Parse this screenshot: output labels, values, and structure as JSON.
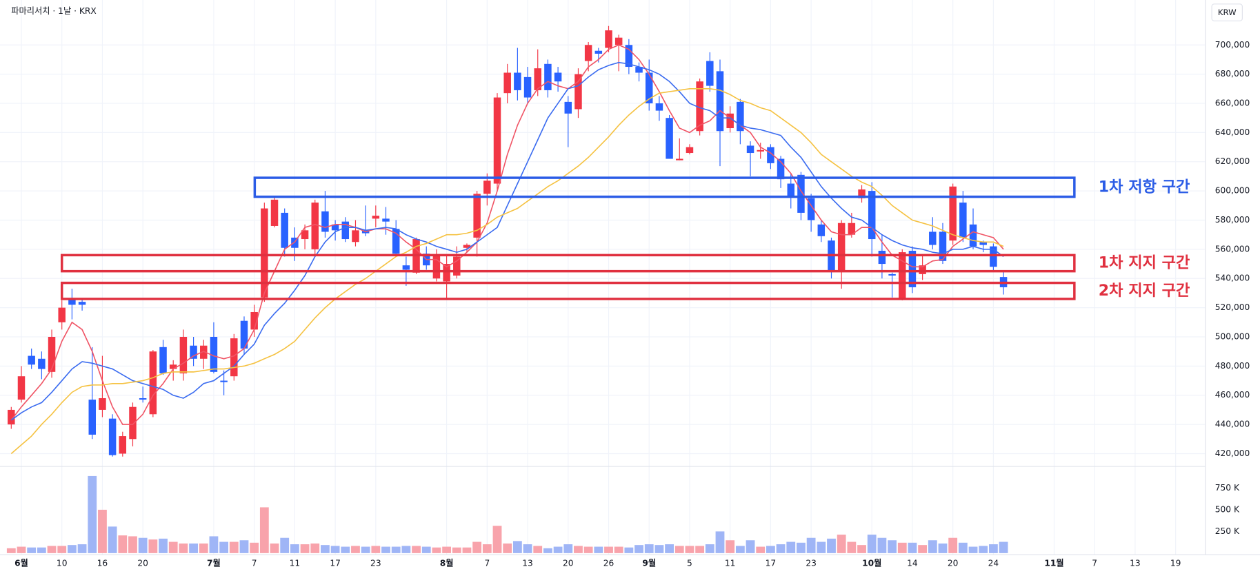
{
  "chart_data": {
    "type": "candlestick",
    "title": "파마리서치 · 1날 · KRX",
    "currency_button": "KRW",
    "grid": true,
    "up_color": "#f23645",
    "down_color": "#2962ff",
    "categories": [
      null,
      "6월",
      null,
      null,
      null,
      "10",
      null,
      null,
      null,
      "16",
      null,
      null,
      null,
      "20",
      null,
      null,
      null,
      null,
      null,
      null,
      "7월",
      null,
      null,
      null,
      "7",
      null,
      null,
      null,
      "11",
      null,
      null,
      null,
      "17",
      null,
      null,
      null,
      "23",
      null,
      null,
      null,
      null,
      null,
      null,
      "8월",
      null,
      null,
      null,
      "7",
      null,
      null,
      null,
      "13",
      null,
      null,
      null,
      "20",
      null,
      null,
      null,
      "26",
      null,
      null,
      null,
      "9월",
      null,
      null,
      null,
      "5",
      null,
      null,
      null,
      "11",
      null,
      null,
      null,
      "17",
      null,
      null,
      null,
      "23",
      null,
      null,
      null,
      null,
      null,
      "10월",
      null,
      null,
      null,
      "14",
      null,
      null,
      null,
      "20",
      null,
      null,
      null,
      "24",
      null,
      null,
      null,
      null,
      null,
      "11월",
      null,
      null,
      null,
      "7",
      null,
      null,
      null,
      "13",
      null,
      null,
      null,
      "19"
    ],
    "open": [
      440000,
      457000,
      487000,
      485000,
      476000,
      510000,
      526000,
      524000,
      457000,
      450000,
      444000,
      420000,
      430000,
      458000,
      447000,
      493000,
      478000,
      475000,
      494000,
      485000,
      500000,
      470000,
      473000,
      511000,
      505000,
      527000,
      576000,
      585000,
      568000,
      567000,
      560000,
      586000,
      577000,
      579000,
      565000,
      573000,
      581000,
      581000,
      574000,
      549000,
      544000,
      557000,
      540000,
      538000,
      542000,
      561000,
      568000,
      598000,
      605000,
      667000,
      681000,
      678000,
      669000,
      687000,
      681000,
      661000,
      656000,
      689000,
      696000,
      698000,
      700000,
      700000,
      685000,
      681000,
      660000,
      650000,
      621000,
      626000,
      641000,
      689000,
      682000,
      643000,
      661000,
      631000,
      627000,
      630000,
      622000,
      605000,
      611000,
      595000,
      577000,
      566000,
      545000,
      570000,
      595000,
      600000,
      559000,
      543000,
      526000,
      559000,
      543000,
      572000,
      572000,
      566000,
      592000,
      577000,
      565000,
      562000,
      541000,
      null,
      null,
      null,
      null,
      null,
      null,
      null,
      null,
      null,
      null,
      null,
      null,
      null,
      null,
      null,
      null,
      null
    ],
    "high": [
      452000,
      480000,
      492000,
      490000,
      505000,
      525000,
      533000,
      526000,
      493000,
      487000,
      447000,
      435000,
      455000,
      466000,
      491000,
      498000,
      484000,
      505000,
      500000,
      498000,
      510000,
      477000,
      502000,
      514000,
      522000,
      592000,
      596000,
      588000,
      575000,
      577000,
      594000,
      600000,
      580000,
      582000,
      580000,
      590000,
      590000,
      589000,
      580000,
      555000,
      568000,
      562000,
      560000,
      556000,
      562000,
      564000,
      600000,
      612000,
      667000,
      687000,
      698000,
      685000,
      697000,
      690000,
      685000,
      665000,
      684000,
      702000,
      698000,
      713000,
      707000,
      704000,
      688000,
      690000,
      665000,
      652000,
      636000,
      632000,
      677000,
      695000,
      690000,
      658000,
      663000,
      634000,
      633000,
      632000,
      624000,
      612000,
      613000,
      598000,
      580000,
      568000,
      580000,
      585000,
      604000,
      606000,
      570000,
      544000,
      560000,
      562000,
      556000,
      582000,
      578000,
      605000,
      600000,
      588000,
      566000,
      564000,
      545000,
      null,
      null,
      null,
      null,
      null,
      null,
      null,
      null,
      null,
      null,
      null,
      null,
      null,
      null,
      null,
      null,
      null
    ],
    "low": [
      437000,
      455000,
      478000,
      471000,
      472000,
      505000,
      512000,
      518000,
      430000,
      445000,
      418000,
      418000,
      425000,
      455000,
      445000,
      474000,
      470000,
      470000,
      480000,
      478000,
      475000,
      460000,
      470000,
      488000,
      500000,
      524000,
      575000,
      555000,
      552000,
      560000,
      556000,
      568000,
      566000,
      565000,
      562000,
      569000,
      575000,
      570000,
      555000,
      535000,
      543000,
      546000,
      538000,
      526000,
      540000,
      558000,
      555000,
      590000,
      600000,
      660000,
      662000,
      660000,
      665000,
      664000,
      668000,
      630000,
      650000,
      682000,
      688000,
      695000,
      682000,
      680000,
      675000,
      655000,
      648000,
      622000,
      621000,
      625000,
      638000,
      668000,
      617000,
      640000,
      632000,
      610000,
      622000,
      615000,
      602000,
      588000,
      580000,
      572000,
      565000,
      540000,
      533000,
      568000,
      592000,
      555000,
      540000,
      527000,
      525000,
      530000,
      539000,
      560000,
      550000,
      563000,
      565000,
      560000,
      558000,
      545000,
      529000,
      null,
      null,
      null,
      null,
      null,
      null,
      null,
      null,
      null,
      null,
      null,
      null,
      null,
      null,
      null,
      null,
      null
    ],
    "close": [
      450000,
      473000,
      481000,
      478000,
      500000,
      520000,
      522000,
      522000,
      433000,
      458000,
      419000,
      432000,
      452000,
      457000,
      490000,
      475000,
      481000,
      500000,
      485000,
      494000,
      476000,
      469000,
      499000,
      492000,
      517000,
      588000,
      594000,
      561000,
      561000,
      573000,
      592000,
      572000,
      573000,
      567000,
      573000,
      571000,
      583000,
      579000,
      557000,
      546000,
      567000,
      549000,
      556000,
      550000,
      555000,
      563000,
      598000,
      607000,
      664000,
      681000,
      669000,
      664000,
      684000,
      669000,
      675000,
      653000,
      680000,
      700000,
      694000,
      710000,
      705000,
      685000,
      681000,
      660000,
      655000,
      622000,
      622000,
      630000,
      675000,
      672000,
      641000,
      653000,
      641000,
      626000,
      628000,
      619000,
      608000,
      596000,
      585000,
      580000,
      569000,
      545000,
      578000,
      578000,
      601000,
      567000,
      550000,
      542000,
      558000,
      534000,
      549000,
      563000,
      552000,
      603000,
      568000,
      562000,
      563000,
      548000,
      534000,
      null,
      null,
      null,
      null,
      null,
      null,
      null,
      null,
      null,
      null,
      null,
      null,
      null,
      null,
      null,
      null,
      null
    ],
    "moving_averages": [
      {
        "color": "#f05566",
        "values": [
          443000,
          452000,
          460000,
          468000,
          478000,
          497000,
          510000,
          505000,
          490000,
          470000,
          452000,
          440000,
          440000,
          447000,
          460000,
          468000,
          478000,
          482000,
          487000,
          490000,
          487000,
          485000,
          487000,
          492000,
          505000,
          530000,
          545000,
          560000,
          565000,
          575000,
          577000,
          575000,
          577000,
          577000,
          575000,
          572000,
          574000,
          574000,
          571000,
          565000,
          560000,
          553000,
          553000,
          548000,
          552000,
          558000,
          565000,
          578000,
          600000,
          625000,
          645000,
          660000,
          670000,
          675000,
          672000,
          670000,
          675000,
          685000,
          690000,
          697000,
          700000,
          697000,
          690000,
          680000,
          668000,
          655000,
          643000,
          640000,
          645000,
          648000,
          655000,
          650000,
          645000,
          640000,
          630000,
          626000,
          620000,
          612000,
          600000,
          590000,
          580000,
          572000,
          570000,
          570000,
          575000,
          575000,
          565000,
          556000,
          552000,
          548000,
          548000,
          552000,
          553000,
          562000,
          567000,
          572000,
          570000,
          568000,
          560000,
          null,
          null,
          null,
          null,
          null,
          null,
          null,
          null,
          null,
          null,
          null,
          null,
          null,
          null,
          null,
          null,
          null
        ]
      },
      {
        "color": "#3b6cf0",
        "values": [
          443000,
          448000,
          452000,
          455000,
          462000,
          470000,
          478000,
          483000,
          482000,
          480000,
          478000,
          474000,
          470000,
          468000,
          466000,
          464000,
          460000,
          458000,
          462000,
          468000,
          470000,
          475000,
          480000,
          488000,
          495000,
          508000,
          516000,
          523000,
          532000,
          542000,
          555000,
          565000,
          572000,
          575000,
          575000,
          573000,
          574000,
          575000,
          574000,
          570000,
          567000,
          565000,
          562000,
          560000,
          558000,
          560000,
          565000,
          570000,
          575000,
          590000,
          605000,
          620000,
          635000,
          650000,
          660000,
          670000,
          672000,
          678000,
          683000,
          686000,
          688000,
          687000,
          685000,
          683000,
          680000,
          675000,
          668000,
          660000,
          657000,
          655000,
          650000,
          650000,
          645000,
          643000,
          642000,
          640000,
          638000,
          630000,
          623000,
          613000,
          603000,
          595000,
          588000,
          582000,
          580000,
          575000,
          570000,
          566000,
          563000,
          561000,
          560000,
          558000,
          557000,
          560000,
          560000,
          562000,
          560000,
          560000,
          555000,
          null,
          null,
          null,
          null,
          null,
          null,
          null,
          null,
          null,
          null,
          null,
          null,
          null,
          null,
          null,
          null,
          null
        ]
      },
      {
        "color": "#f5c242",
        "values": [
          420000,
          426000,
          432000,
          440000,
          447000,
          455000,
          462000,
          466000,
          467000,
          467000,
          468000,
          468000,
          469000,
          470000,
          472000,
          475000,
          476000,
          476000,
          476000,
          477000,
          478000,
          478000,
          479000,
          480000,
          482000,
          485000,
          488000,
          492000,
          497000,
          505000,
          513000,
          520000,
          526000,
          531000,
          536000,
          540000,
          545000,
          550000,
          555000,
          558000,
          562000,
          564000,
          567000,
          570000,
          570000,
          571000,
          573000,
          577000,
          582000,
          585000,
          588000,
          593000,
          598000,
          603000,
          607000,
          612000,
          617000,
          623000,
          630000,
          637000,
          645000,
          652000,
          658000,
          663000,
          667000,
          668000,
          669000,
          670000,
          670000,
          670000,
          669000,
          666000,
          662000,
          660000,
          657000,
          655000,
          650000,
          645000,
          640000,
          633000,
          625000,
          620000,
          615000,
          610000,
          606000,
          603000,
          597000,
          590000,
          585000,
          580000,
          578000,
          576000,
          573000,
          570000,
          568000,
          566000,
          565000,
          565000,
          562000,
          null,
          null,
          null,
          null,
          null,
          null,
          null,
          null,
          null,
          null,
          null,
          null,
          null,
          null,
          null,
          null,
          null
        ]
      }
    ],
    "ylim": [
      411800,
      730800
    ],
    "yticks": [
      {
        "value": 420000,
        "label": "420,000"
      },
      {
        "value": 440000,
        "label": "440,000"
      },
      {
        "value": 460000,
        "label": "460,000"
      },
      {
        "value": 480000,
        "label": "480,000"
      },
      {
        "value": 500000,
        "label": "500,000"
      },
      {
        "value": 520000,
        "label": "520,000"
      },
      {
        "value": 540000,
        "label": "540,000"
      },
      {
        "value": 560000,
        "label": "560,000"
      },
      {
        "value": 580000,
        "label": "580,000"
      },
      {
        "value": 600000,
        "label": "600,000"
      },
      {
        "value": 620000,
        "label": "620,000"
      },
      {
        "value": 640000,
        "label": "640,000"
      },
      {
        "value": 660000,
        "label": "660,000"
      },
      {
        "value": 680000,
        "label": "680,000"
      },
      {
        "value": 700000,
        "label": "700,000"
      }
    ],
    "volume": {
      "up_color": "#f8a3ab",
      "down_color": "#9fb5f6",
      "ylim": [
        0,
        981000
      ],
      "yticks": [
        {
          "value": 250000,
          "label": "250 K"
        },
        {
          "value": 500000,
          "label": "500 K"
        },
        {
          "value": 750000,
          "label": "750 K"
        }
      ],
      "values": [
        56000,
        74000,
        65000,
        65000,
        83000,
        83000,
        93000,
        102000,
        889000,
        500000,
        306000,
        204000,
        194000,
        176000,
        157000,
        167000,
        130000,
        111000,
        111000,
        111000,
        194000,
        130000,
        130000,
        148000,
        120000,
        528000,
        111000,
        176000,
        102000,
        102000,
        111000,
        93000,
        83000,
        74000,
        83000,
        74000,
        83000,
        74000,
        74000,
        83000,
        83000,
        74000,
        65000,
        74000,
        65000,
        65000,
        130000,
        102000,
        315000,
        111000,
        139000,
        102000,
        83000,
        56000,
        74000,
        102000,
        83000,
        74000,
        74000,
        74000,
        74000,
        65000,
        93000,
        102000,
        93000,
        102000,
        83000,
        83000,
        83000,
        102000,
        250000,
        148000,
        83000,
        148000,
        74000,
        83000,
        102000,
        130000,
        120000,
        176000,
        130000,
        167000,
        213000,
        130000,
        93000,
        213000,
        176000,
        148000,
        120000,
        120000,
        93000,
        148000,
        111000,
        176000,
        120000,
        74000,
        83000,
        102000,
        130000,
        null,
        null,
        null,
        null,
        null,
        null,
        null,
        null,
        null,
        null,
        null,
        null,
        null,
        null,
        null,
        null,
        null
      ]
    },
    "zones": [
      {
        "label": "1차 저항 구간",
        "low": 596000,
        "high": 609000,
        "color": "#2b5ce6"
      },
      {
        "label": "1차 지지 구간",
        "low": 545000,
        "high": 556000,
        "color": "#e0303f"
      },
      {
        "label": "2차 지지 구간",
        "low": 526000,
        "high": 537000,
        "color": "#e0303f"
      }
    ]
  }
}
